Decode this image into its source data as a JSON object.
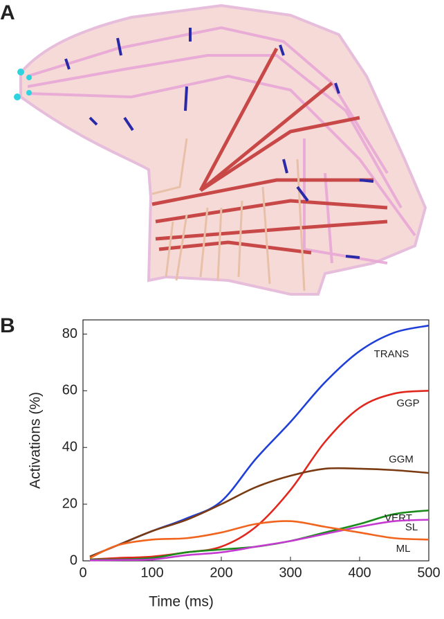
{
  "panel_labels": [
    "A",
    "B"
  ],
  "chart_data": {
    "type": "line",
    "x_label": "Time (ms)",
    "y_label": "Activations (%)",
    "x": [
      10,
      50,
      100,
      150,
      200,
      250,
      300,
      350,
      400,
      450,
      500
    ],
    "series": [
      {
        "name": "TRANS",
        "color": "#1f3fd8",
        "values": [
          1.5,
          5.5,
          10.5,
          15,
          21,
          36,
          49,
          63,
          74,
          80.5,
          83
        ]
      },
      {
        "name": "GGP",
        "color": "#e0281e",
        "values": [
          0.5,
          1,
          1.5,
          3,
          5,
          12,
          25,
          42,
          54,
          59,
          60
        ]
      },
      {
        "name": "GGM",
        "color": "#7a3a12",
        "values": [
          1.5,
          5.5,
          10.5,
          14.5,
          20,
          26,
          30,
          32.5,
          32.5,
          32,
          31
        ]
      },
      {
        "name": "VERT",
        "color": "#1a8a1a",
        "values": [
          0.5,
          0.5,
          1,
          3,
          4,
          5,
          7,
          10,
          13,
          16.5,
          17.8
        ]
      },
      {
        "name": "SL",
        "color": "#c43ad0",
        "values": [
          0.2,
          0.3,
          0.5,
          2,
          3,
          5,
          7,
          9.5,
          12,
          14,
          14.5
        ]
      },
      {
        "name": "ML",
        "color": "#f0641e",
        "values": [
          1,
          5.5,
          7.5,
          8,
          10,
          13,
          14,
          12,
          10,
          8,
          7.5
        ]
      }
    ],
    "xlim": [
      0,
      500
    ],
    "xticks": [
      0,
      100,
      200,
      300,
      400,
      500
    ],
    "ylim": [
      0,
      85
    ],
    "yticks": [
      0,
      20,
      40,
      60,
      80
    ],
    "grid": false
  }
}
